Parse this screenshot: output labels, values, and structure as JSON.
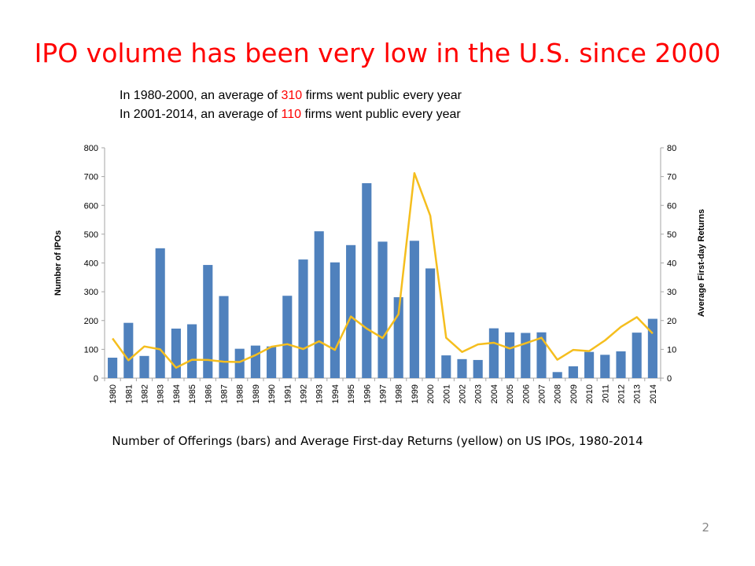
{
  "slide": {
    "title": "IPO volume has been very low in the U.S. since 2000",
    "subtitle_lines": [
      {
        "pre": "In 1980-2000, an average of ",
        "value": "310",
        "post": " firms went public every year"
      },
      {
        "pre": "In 2001-2014, an average of ",
        "value": "110",
        "post": " firms went public every year"
      }
    ],
    "caption": "Number of Offerings (bars) and Average First-day Returns (yellow) on US IPOs, 1980-2014",
    "page_number": "2"
  },
  "colors": {
    "title": "#ff0000",
    "highlight": "#ff0000",
    "bars": "#4f81bd",
    "line": "#f5be1e"
  },
  "chart_data": {
    "type": "bar+line",
    "title": "",
    "categories": [
      "1980",
      "1981",
      "1982",
      "1983",
      "1984",
      "1985",
      "1986",
      "1987",
      "1988",
      "1989",
      "1990",
      "1991",
      "1992",
      "1993",
      "1994",
      "1995",
      "1996",
      "1997",
      "1998",
      "1999",
      "2000",
      "2001",
      "2002",
      "2003",
      "2004",
      "2005",
      "2006",
      "2007",
      "2008",
      "2009",
      "2010",
      "2011",
      "2012",
      "2013",
      "2014"
    ],
    "series": [
      {
        "type": "bar",
        "axis": "left",
        "values": [
          71,
          192,
          77,
          451,
          172,
          187,
          393,
          285,
          102,
          113,
          110,
          286,
          412,
          510,
          402,
          462,
          677,
          474,
          281,
          477,
          381,
          79,
          66,
          63,
          173,
          159,
          157,
          159,
          21,
          41,
          91,
          81,
          93,
          158,
          206
        ]
      },
      {
        "type": "line",
        "axis": "right",
        "values": [
          13.8,
          6.2,
          11.0,
          10.0,
          3.6,
          6.4,
          6.3,
          5.7,
          5.6,
          8.0,
          10.9,
          11.8,
          10.1,
          12.8,
          9.8,
          21.4,
          17.2,
          13.9,
          22.2,
          71.2,
          56.4,
          14.0,
          9.1,
          11.7,
          12.3,
          10.3,
          12.1,
          14.0,
          6.4,
          9.8,
          9.4,
          13.1,
          17.8,
          21.2,
          15.5
        ]
      }
    ],
    "ylabel": "Number of IPOs",
    "y2label": "Average First-day Returns",
    "ylim": [
      0,
      800
    ],
    "y2lim": [
      0,
      80
    ],
    "yticks": [
      "0",
      "100",
      "200",
      "300",
      "400",
      "500",
      "600",
      "700",
      "800"
    ],
    "y2ticks": [
      "0",
      "10",
      "20",
      "30",
      "40",
      "50",
      "60",
      "70",
      "80"
    ],
    "grid": false,
    "legend": "none"
  }
}
